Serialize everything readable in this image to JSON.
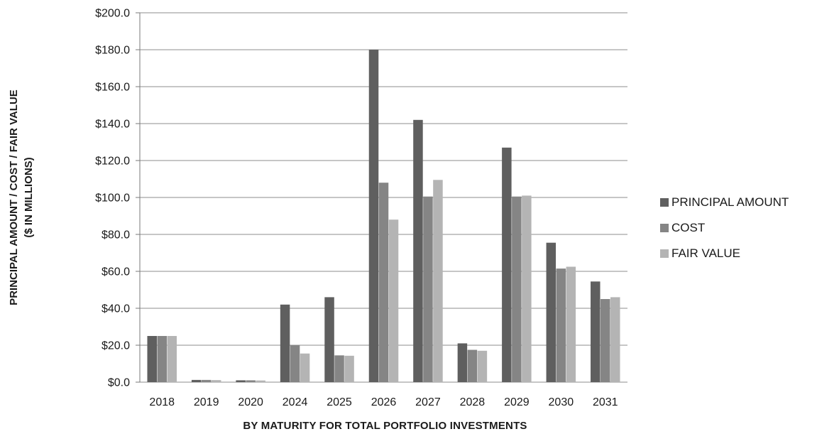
{
  "chart_data": {
    "type": "bar",
    "title": "",
    "xlabel": "BY MATURITY FOR TOTAL PORTFOLIO INVESTMENTS",
    "ylabel": [
      "PRINCIPAL AMOUNT / COST / FAIR VALUE",
      "($ IN MILLIONS)"
    ],
    "ylim": [
      0,
      200
    ],
    "ytick_step": 20,
    "ytick_labels": [
      "$0.0",
      "$20.0",
      "$40.0",
      "$60.0",
      "$80.0",
      "$100.0",
      "$120.0",
      "$140.0",
      "$160.0",
      "$180.0",
      "$200.0"
    ],
    "grid": "horizontal",
    "legend_position": "right",
    "categories": [
      "2018",
      "2019",
      "2020",
      "2024",
      "2025",
      "2026",
      "2027",
      "2028",
      "2029",
      "2030",
      "2031"
    ],
    "series": [
      {
        "name": "PRINCIPAL AMOUNT",
        "color": "#5f5f5f",
        "values": [
          25.0,
          1.2,
          1.0,
          42.0,
          46.0,
          180.0,
          142.0,
          21.0,
          127.0,
          75.5,
          54.5
        ]
      },
      {
        "name": "COST",
        "color": "#858585",
        "values": [
          25.0,
          1.2,
          1.0,
          20.0,
          14.5,
          108.0,
          100.5,
          17.5,
          100.5,
          61.5,
          45.0
        ]
      },
      {
        "name": "FAIR VALUE",
        "color": "#b4b4b4",
        "values": [
          25.0,
          1.1,
          0.9,
          15.5,
          14.3,
          88.0,
          109.5,
          17.0,
          101.0,
          62.5,
          46.0
        ]
      }
    ]
  }
}
